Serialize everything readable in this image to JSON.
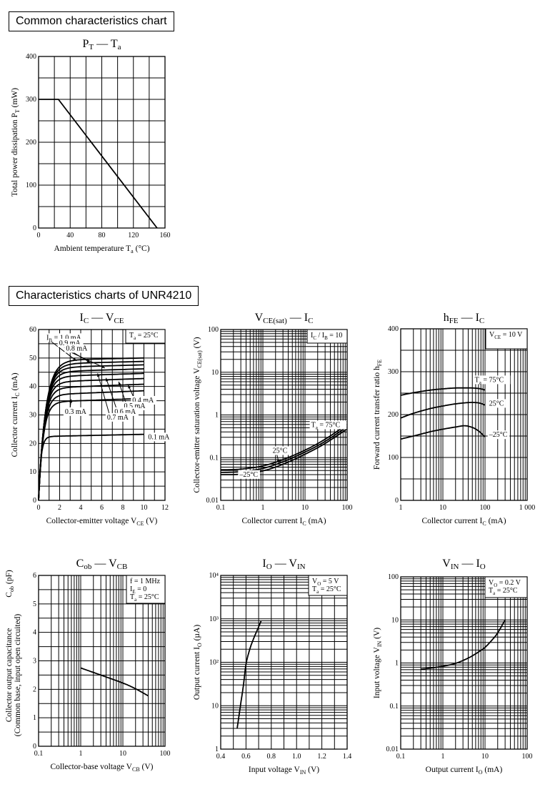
{
  "headers": {
    "common": "Common characteristics chart",
    "device": "Characteristics charts of UNR4210"
  },
  "chart_data": [
    {
      "id": "pt_ta",
      "type": "line",
      "title": {
        "main": "P",
        "main_sub": "T",
        "dash": "—",
        "vs": "T",
        "vs_sub": "a"
      },
      "xlabel": {
        "text": "Ambient temperature  T",
        "sub": "a",
        "unit": "  (°C)"
      },
      "ylabel": {
        "text": "Total power dissipation  P",
        "sub": "T",
        "unit": "  (mW)"
      },
      "xscale": "linear",
      "yscale": "linear",
      "xlim": [
        0,
        160
      ],
      "ylim": [
        0,
        400
      ],
      "xticks": [
        0,
        40,
        80,
        120,
        160
      ],
      "xtick_labels": [
        "0",
        "40",
        "80",
        "120",
        "160"
      ],
      "yticks": [
        0,
        100,
        200,
        300,
        400
      ],
      "ytick_labels": [
        "0",
        "100",
        "200",
        "300",
        "400"
      ],
      "xgrid": [
        0,
        20,
        40,
        60,
        80,
        100,
        120,
        140,
        160
      ],
      "ygrid": [
        0,
        50,
        100,
        150,
        200,
        250,
        300,
        350,
        400
      ],
      "grid": true,
      "series": [
        {
          "name": "PT",
          "x": [
            0,
            25,
            150
          ],
          "y": [
            300,
            300,
            0
          ]
        }
      ],
      "annotations": []
    },
    {
      "id": "ic_vce",
      "type": "line",
      "title": {
        "main": "I",
        "main_sub": "C",
        "dash": "—",
        "vs": "V",
        "vs_sub": "CE"
      },
      "xlabel": {
        "text": "Collector-emitter voltage  V",
        "sub": "CE",
        "unit": "  (V)"
      },
      "ylabel": {
        "text": "Collector current  I",
        "sub": "C",
        "unit": "  (mA)"
      },
      "xscale": "linear",
      "yscale": "linear",
      "xlim": [
        0,
        12
      ],
      "ylim": [
        0,
        60
      ],
      "xticks": [
        0,
        2,
        4,
        6,
        8,
        10,
        12
      ],
      "xtick_labels": [
        "0",
        "2",
        "4",
        "6",
        "8",
        "10",
        "12"
      ],
      "yticks": [
        0,
        10,
        20,
        30,
        40,
        50,
        60
      ],
      "ytick_labels": [
        "0",
        "10",
        "20",
        "30",
        "40",
        "50",
        "60"
      ],
      "xgrid": [
        0,
        1,
        2,
        3,
        4,
        5,
        6,
        7,
        8,
        9,
        10,
        11,
        12
      ],
      "ygrid": [
        0,
        5,
        10,
        15,
        20,
        25,
        30,
        35,
        40,
        45,
        50,
        55,
        60
      ],
      "grid": true,
      "condition": [
        {
          "text": "T",
          "sub": "a",
          "rest": " = 25°C"
        }
      ],
      "curve_model": "saturation",
      "series": [
        {
          "name": "IB = 1.0 mA",
          "sat": 50.0,
          "slope": 0.08,
          "knee": 1.2
        },
        {
          "name": "IB = 0.9 mA",
          "sat": 48.8,
          "slope": 0.09,
          "knee": 1.15
        },
        {
          "name": "IB = 0.8 mA",
          "sat": 47.6,
          "slope": 0.1,
          "knee": 1.1
        },
        {
          "name": "IB = 0.7 mA",
          "sat": 46.2,
          "slope": 0.11,
          "knee": 1.05
        },
        {
          "name": "IB = 0.6 mA",
          "sat": 44.6,
          "slope": 0.12,
          "knee": 1.0
        },
        {
          "name": "IB = 0.5 mA",
          "sat": 42.8,
          "slope": 0.13,
          "knee": 0.95
        },
        {
          "name": "IB = 0.4 mA",
          "sat": 40.8,
          "slope": 0.14,
          "knee": 0.9
        },
        {
          "name": "IB = 0.3 mA",
          "sat": 38.5,
          "slope": 0.15,
          "knee": 0.85
        },
        {
          "name": "IB = 0.2 mA",
          "sat": 35.8,
          "slope": 0.13,
          "knee": 0.8
        },
        {
          "name": "IB = 0.1 mA",
          "sat": 23.2,
          "slope": 0.08,
          "knee": 0.4
        }
      ],
      "xmax_curve": 10,
      "annotations": [
        {
          "text": "I",
          "sub": "B",
          "rest": " = 1.0 mA",
          "x": 0.75,
          "y": 56.4,
          "ax": 3.6,
          "ay": 49.0
        },
        {
          "text": "0.9 mA",
          "x": 1.95,
          "y": 54.5,
          "ax": 4.9,
          "ay": 48.4
        },
        {
          "text": "0.8 mA",
          "x": 2.6,
          "y": 52.6,
          "ax": 6.3,
          "ay": 46.5
        },
        {
          "text": "0.4 mA",
          "x": 8.9,
          "y": 34.4,
          "ax": 8.5,
          "ay": 40.5
        },
        {
          "text": "0.5 mA",
          "x": 8.1,
          "y": 32.4,
          "ax": 7.6,
          "ay": 41.7
        },
        {
          "text": "0.6 mA",
          "x": 7.2,
          "y": 30.4,
          "ax": 6.4,
          "ay": 43.0
        },
        {
          "text": "0.7 mA",
          "x": 6.5,
          "y": 28.4,
          "ax": 5.6,
          "ay": 44.6
        },
        {
          "text": "0.3 mA",
          "x": 2.5,
          "y": 30.4,
          "ax": 3.1,
          "ay": 35.5
        },
        {
          "text": "0.1 mA",
          "x": 10.4,
          "y": 21.5
        }
      ]
    },
    {
      "id": "vcesat_ic",
      "type": "line",
      "title": {
        "main": "V",
        "main_sub": "CE(sat)",
        "dash": "—",
        "vs": "I",
        "vs_sub": "C"
      },
      "xlabel": {
        "text": "Collector current  I",
        "sub": "C",
        "unit": "  (mA)"
      },
      "ylabel": {
        "text": "Collector-emitter saturation voltage  V",
        "sub": "CE(sat)",
        "unit": "  (V)"
      },
      "xscale": "log",
      "yscale": "log",
      "xlim": [
        0.1,
        100
      ],
      "ylim": [
        0.01,
        100
      ],
      "xticks": [
        0.1,
        1,
        10,
        100
      ],
      "xtick_labels": [
        "0.1",
        "1",
        "10",
        "100"
      ],
      "yticks": [
        0.01,
        0.1,
        1,
        10,
        100
      ],
      "ytick_labels": [
        "0.01",
        "0.1",
        "1",
        "10",
        "100"
      ],
      "grid": true,
      "condition": [
        {
          "text": "I",
          "sub": "C",
          "rest": " / I",
          "sub2": "B",
          "rest2": " = 10"
        }
      ],
      "series": [
        {
          "name": "Ta = 75°C",
          "x": [
            0.1,
            0.3,
            1,
            3,
            10,
            30,
            100
          ],
          "y": [
            0.052,
            0.054,
            0.064,
            0.09,
            0.15,
            0.27,
            0.6
          ]
        },
        {
          "name": "25°C",
          "x": [
            0.1,
            0.3,
            1,
            3,
            10,
            30,
            100
          ],
          "y": [
            0.045,
            0.047,
            0.056,
            0.08,
            0.135,
            0.24,
            0.53
          ]
        },
        {
          "name": "-25°C",
          "x": [
            0.1,
            0.3,
            1,
            3,
            10,
            30,
            100
          ],
          "y": [
            0.04,
            0.041,
            0.049,
            0.07,
            0.12,
            0.215,
            0.47
          ]
        }
      ],
      "annotations": [
        {
          "text": "T",
          "sub": "a",
          "rest": " = 75°C",
          "x": 14,
          "y": 0.52
        },
        {
          "text": "25°C",
          "x": 1.7,
          "y": 0.13,
          "ax": 2.4,
          "ay": 0.075
        },
        {
          "text": "–25°C",
          "x": 0.28,
          "y": 0.036
        }
      ]
    },
    {
      "id": "hfe_ic",
      "type": "line",
      "title": {
        "main": "h",
        "main_sub": "FE",
        "dash": "—",
        "vs": "I",
        "vs_sub": "C"
      },
      "xlabel": {
        "text": "Collector current  I",
        "sub": "C",
        "unit": "  (mA)"
      },
      "ylabel": {
        "text": "Forward current transfer ratio  h",
        "sub": "FE",
        "unit": ""
      },
      "xscale": "log",
      "yscale": "linear",
      "xlim": [
        1,
        1000
      ],
      "ylim": [
        0,
        400
      ],
      "xticks": [
        1,
        10,
        100,
        1000
      ],
      "xtick_labels": [
        "1",
        "10",
        "100",
        "1 000"
      ],
      "yticks": [
        0,
        100,
        200,
        300,
        400
      ],
      "ytick_labels": [
        "0",
        "100",
        "200",
        "300",
        "400"
      ],
      "ygrid": [
        0,
        50,
        100,
        150,
        200,
        250,
        300,
        350,
        400
      ],
      "grid": true,
      "condition": [
        {
          "text": "V",
          "sub": "CE",
          "rest": " = 10 V"
        }
      ],
      "series": [
        {
          "name": "Ta = 75°C",
          "x": [
            1,
            2,
            5,
            10,
            20,
            50,
            80,
            100
          ],
          "y": [
            245,
            251,
            257,
            260,
            262,
            262,
            260,
            257
          ]
        },
        {
          "name": "25°C",
          "x": [
            1,
            2,
            5,
            10,
            20,
            40,
            60,
            80,
            100
          ],
          "y": [
            192,
            203,
            214,
            220,
            225,
            228,
            228,
            226,
            222
          ]
        },
        {
          "name": "-25°C",
          "x": [
            1,
            2,
            5,
            10,
            20,
            33,
            50,
            70,
            100
          ],
          "y": [
            143,
            150,
            160,
            166,
            171,
            174,
            170,
            162,
            148
          ]
        }
      ],
      "annotations": [
        {
          "text": "T",
          "sub": "a",
          "rest": " = 75°C",
          "x": 57,
          "y": 276
        },
        {
          "text": "25°C",
          "x": 125,
          "y": 221
        },
        {
          "text": "–25°C",
          "x": 125,
          "y": 148
        }
      ]
    },
    {
      "id": "cob_vcb",
      "type": "line",
      "title": {
        "main": "C",
        "main_sub": "ob",
        "dash": "—",
        "vs": "V",
        "vs_sub": "CB"
      },
      "xlabel": {
        "text": "Collector-base voltage  V",
        "sub": "CB",
        "unit": "  (V)"
      },
      "ylabel": {
        "text": "Collector output capacitance",
        "line2": "(Common base, input open circuited)",
        "text3": "C",
        "sub": "ob",
        "unit": "  (pF)"
      },
      "xscale": "log",
      "yscale": "linear",
      "xlim": [
        0.1,
        100
      ],
      "ylim": [
        0,
        6
      ],
      "xticks": [
        0.1,
        1,
        10,
        100
      ],
      "xtick_labels": [
        "0.1",
        "1",
        "10",
        "100"
      ],
      "yticks": [
        0,
        1,
        2,
        3,
        4,
        5,
        6
      ],
      "ytick_labels": [
        "0",
        "1",
        "2",
        "3",
        "4",
        "5",
        "6"
      ],
      "ygrid": [
        0,
        0.5,
        1,
        1.5,
        2,
        2.5,
        3,
        3.5,
        4,
        4.5,
        5,
        5.5,
        6
      ],
      "grid": true,
      "condition": [
        {
          "text": "f = 1 MHz"
        },
        {
          "text": "I",
          "sub": "E",
          "rest": " = 0"
        },
        {
          "text": "T",
          "sub": "a",
          "rest": " = 25°C"
        }
      ],
      "series": [
        {
          "name": "Cob",
          "x": [
            1,
            3,
            10,
            20,
            40
          ],
          "y": [
            2.75,
            2.5,
            2.22,
            2.02,
            1.77
          ]
        }
      ],
      "annotations": []
    },
    {
      "id": "io_vin",
      "type": "line",
      "title": {
        "main": "I",
        "main_sub": "O",
        "dash": "—",
        "vs": "V",
        "vs_sub": "IN"
      },
      "xlabel": {
        "text": "Input voltage  V",
        "sub": "IN",
        "unit": "  (V)"
      },
      "ylabel": {
        "text": "Output current  I",
        "sub": "O",
        "unit": "  (µA)"
      },
      "xscale": "linear",
      "yscale": "log",
      "xlim": [
        0.4,
        1.4
      ],
      "ylim": [
        1,
        10000
      ],
      "xticks": [
        0.4,
        0.6,
        0.8,
        1.0,
        1.2,
        1.4
      ],
      "xtick_labels": [
        "0.4",
        "0.6",
        "0.8",
        "1.0",
        "1.2",
        "1.4"
      ],
      "xgrid": [
        0.4,
        0.5,
        0.6,
        0.7,
        0.8,
        0.9,
        1.0,
        1.1,
        1.2,
        1.3,
        1.4
      ],
      "yticks": [
        1,
        10,
        100,
        1000,
        10000
      ],
      "ytick_labels": [
        "1",
        "10",
        "10²",
        "10³",
        "10⁴"
      ],
      "grid": true,
      "condition": [
        {
          "text": "V",
          "sub": "O",
          "rest": " = 5 V"
        },
        {
          "text": "T",
          "sub": "a",
          "rest": " = 25°C"
        }
      ],
      "series": [
        {
          "name": "IO",
          "x": [
            0.53,
            0.545,
            0.56,
            0.58,
            0.6,
            0.63,
            0.66,
            0.69,
            0.72
          ],
          "y": [
            3,
            6,
            12,
            30,
            90,
            200,
            350,
            560,
            900
          ]
        }
      ],
      "annotations": []
    },
    {
      "id": "vin_io",
      "type": "line",
      "title": {
        "main": "V",
        "main_sub": "IN",
        "dash": "—",
        "vs": "I",
        "vs_sub": "O"
      },
      "xlabel": {
        "text": "Output current  I",
        "sub": "O",
        "unit": "  (mA)"
      },
      "ylabel": {
        "text": "Input voltage  V",
        "sub": "IN",
        "unit": "  (V)"
      },
      "xscale": "log",
      "yscale": "log",
      "xlim": [
        0.1,
        100
      ],
      "ylim": [
        0.01,
        100
      ],
      "xticks": [
        0.1,
        1,
        10,
        100
      ],
      "xtick_labels": [
        "0.1",
        "1",
        "10",
        "100"
      ],
      "yticks": [
        0.01,
        0.1,
        1,
        10,
        100
      ],
      "ytick_labels": [
        "0.01",
        "0.1",
        "1",
        "10",
        "100"
      ],
      "grid": true,
      "condition": [
        {
          "text": "V",
          "sub": "O",
          "rest": " = 0.2 V"
        },
        {
          "text": "T",
          "sub": "a",
          "rest": " = 25°C"
        }
      ],
      "series": [
        {
          "name": "VIN",
          "x": [
            0.3,
            0.5,
            1,
            2,
            4,
            7,
            10,
            15,
            20,
            30
          ],
          "y": [
            0.72,
            0.76,
            0.84,
            0.98,
            1.3,
            1.8,
            2.3,
            3.5,
            5.0,
            10
          ]
        }
      ],
      "annotations": []
    }
  ]
}
